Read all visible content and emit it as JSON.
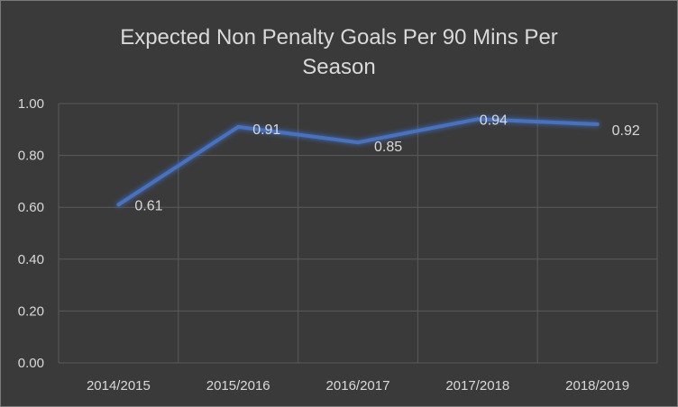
{
  "chart_data": {
    "type": "line",
    "title_line1": "Expected Non Penalty Goals Per 90 Mins Per",
    "title_line2": "Season",
    "categories": [
      "2014/2015",
      "2015/2016",
      "2016/2017",
      "2017/2018",
      "2018/2019"
    ],
    "series": [
      {
        "values": [
          0.61,
          0.91,
          0.85,
          0.94,
          0.92
        ]
      }
    ],
    "data_labels": [
      "0.61",
      "0.91",
      "0.85",
      "0.94",
      "0.92"
    ],
    "y_ticks": [
      "0.00",
      "0.20",
      "0.40",
      "0.60",
      "0.80",
      "1.00"
    ],
    "y_tick_values": [
      0,
      0.2,
      0.4,
      0.6,
      0.8,
      1.0
    ],
    "ylim": [
      0,
      1.0
    ],
    "grid": true,
    "legend": "none",
    "colors": {
      "background": "#3a3a3a",
      "line": "#4472c4",
      "grid": "#5a5a5a",
      "text": "#d9d9d9"
    }
  }
}
